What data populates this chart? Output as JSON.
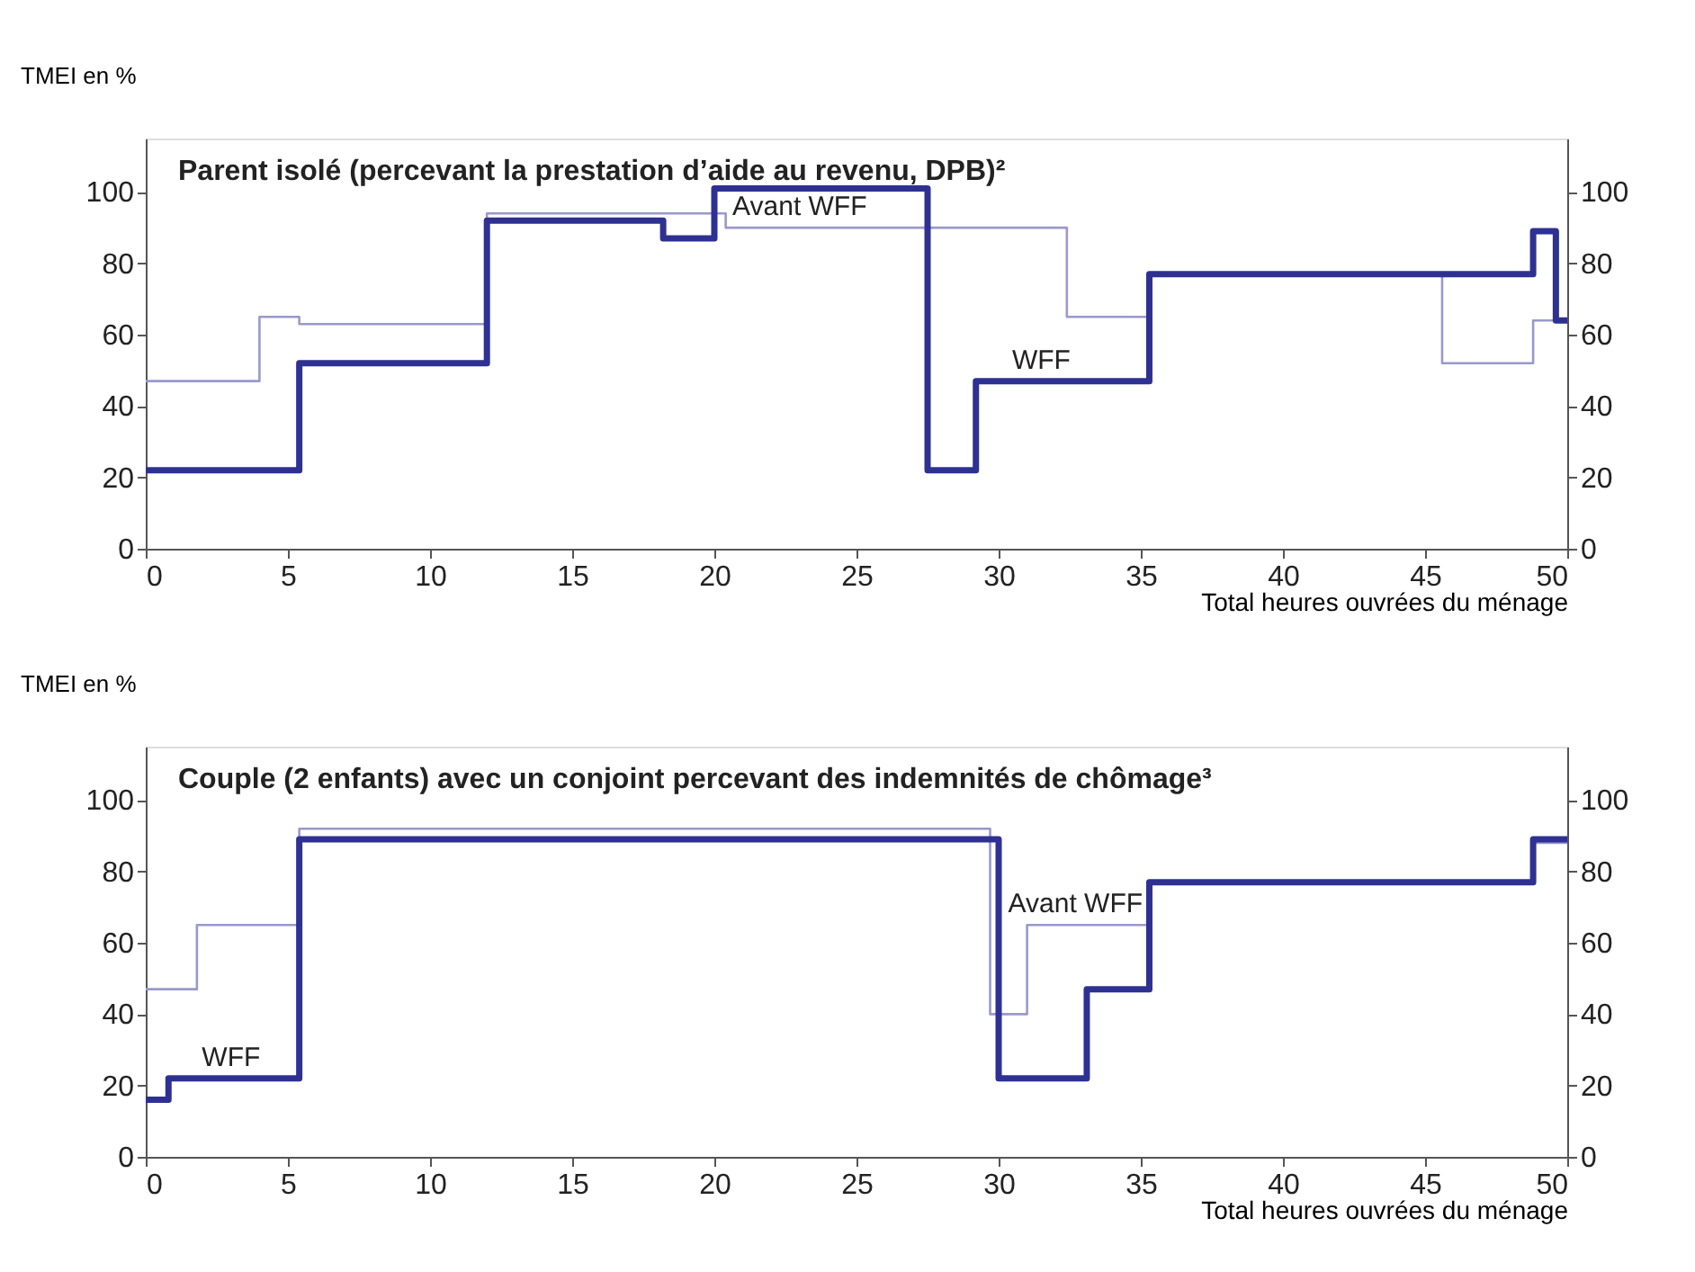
{
  "chart_data": [
    {
      "type": "step",
      "title": "Parent isolé (percevant la prestation d’aide au revenu, DPB)²",
      "ylabel": "TMEI en %",
      "xlabel": "Total heures ouvrées du ménage",
      "xlim": [
        0,
        50
      ],
      "xticks": [
        0,
        5,
        10,
        15,
        20,
        25,
        30,
        35,
        40,
        45,
        50
      ],
      "ylim": [
        0,
        115
      ],
      "yticks": [
        0,
        20,
        40,
        60,
        80,
        100
      ],
      "y2lim": [
        0,
        115
      ],
      "y2ticks": [
        0,
        20,
        40,
        60,
        80,
        100
      ],
      "grid": false,
      "series": [
        {
          "color": "#9999cc",
          "x": [
            0,
            4,
            5.4,
            12,
            20.4,
            32.4,
            35.3,
            45.6,
            48.8,
            50
          ],
          "values": [
            47,
            65,
            63,
            94,
            90,
            65,
            77,
            52,
            64,
            64
          ]
        },
        {
          "color": "#2e3192",
          "x": [
            0,
            5.4,
            12,
            18.2,
            20,
            27.5,
            29.2,
            35.3,
            48.8,
            49.6,
            50
          ],
          "values": [
            22,
            52,
            92,
            87,
            101,
            22,
            47,
            77,
            89,
            64,
            64
          ]
        }
      ],
      "annotations": [
        {
          "text": "Avant WFF",
          "x": 23,
          "y": 90
        },
        {
          "text": "WFF",
          "x": 31.5,
          "y": 47
        }
      ]
    },
    {
      "type": "step",
      "title": "Couple (2 enfants) avec un conjoint percevant des indemnités de chômage³",
      "ylabel": "TMEI en %",
      "xlabel": "Total heures ouvrées du ménage",
      "xlim": [
        0,
        50
      ],
      "xticks": [
        0,
        5,
        10,
        15,
        20,
        25,
        30,
        35,
        40,
        45,
        50
      ],
      "ylim": [
        0,
        115
      ],
      "yticks": [
        0,
        20,
        40,
        60,
        80,
        100
      ],
      "y2lim": [
        0,
        115
      ],
      "y2ticks": [
        0,
        20,
        40,
        60,
        80,
        100
      ],
      "grid": false,
      "series": [
        {
          "color": "#9999cc",
          "x": [
            0,
            1.8,
            5.4,
            29.7,
            31,
            35.3,
            48.8,
            50
          ],
          "values": [
            47,
            65,
            92,
            40,
            65,
            77,
            88,
            88
          ]
        },
        {
          "color": "#2e3192",
          "x": [
            0,
            0.8,
            5.4,
            30,
            33.1,
            35.3,
            48.8,
            50
          ],
          "values": [
            16,
            22,
            89,
            22,
            47,
            77,
            89,
            89
          ]
        }
      ],
      "annotations": [
        {
          "text": "WFF",
          "x": 3,
          "y": 22
        },
        {
          "text": "Avant WFF",
          "x": 32.7,
          "y": 65
        }
      ]
    }
  ]
}
